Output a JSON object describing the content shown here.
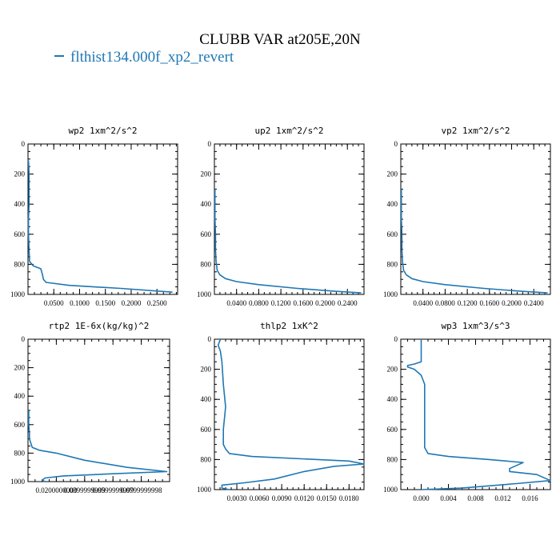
{
  "title": "CLUBB VAR at205E,20N",
  "legend": {
    "label": "flthist134.000f_xp2_revert",
    "color": "#1f77b4"
  },
  "chart_data": [
    {
      "type": "line",
      "title": "wp2  1xm^2/s^2",
      "xlim": [
        0,
        0.29
      ],
      "ylim": [
        1000,
        0
      ],
      "xticks": [
        0.05,
        0.1,
        0.15,
        0.2,
        0.25
      ],
      "xticklabels": [
        "0.0500",
        "0.1000",
        "0.1500",
        "0.2000",
        "0.2500"
      ],
      "yticks": [
        0,
        200,
        400,
        600,
        800,
        1000
      ],
      "yticklabels": [
        "0",
        "200",
        "400",
        "600",
        "800",
        "1000"
      ],
      "x": [
        0.001,
        0.002,
        0.002,
        0.002,
        0.001,
        0.001,
        0.002,
        0.003,
        0.01,
        0.025,
        0.028,
        0.03,
        0.035,
        0.08,
        0.18,
        0.28
      ],
      "y": [
        110,
        200,
        300,
        400,
        500,
        600,
        700,
        780,
        810,
        830,
        870,
        900,
        920,
        940,
        960,
        985
      ]
    },
    {
      "type": "line",
      "title": "up2  1xm^2/s^2",
      "xlim": [
        0,
        0.27
      ],
      "ylim": [
        1000,
        0
      ],
      "xticks": [
        0.04,
        0.08,
        0.12,
        0.16,
        0.2,
        0.24
      ],
      "xticklabels": [
        "0.0400",
        "0.0800",
        "0.1200",
        "0.1600",
        "0.2000",
        "0.2400"
      ],
      "yticks": [
        0,
        200,
        400,
        600,
        800,
        1000
      ],
      "yticklabels": [
        "0",
        "200",
        "400",
        "600",
        "800",
        "1000"
      ],
      "x": [
        0.001,
        0.001,
        0.001,
        0.002,
        0.002,
        0.003,
        0.005,
        0.01,
        0.02,
        0.04,
        0.08,
        0.15,
        0.22,
        0.265
      ],
      "y": [
        300,
        400,
        500,
        600,
        700,
        780,
        840,
        870,
        895,
        915,
        935,
        960,
        980,
        990
      ]
    },
    {
      "type": "line",
      "title": "vp2  1xm^2/s^2",
      "xlim": [
        0,
        0.27
      ],
      "ylim": [
        1000,
        0
      ],
      "xticks": [
        0.04,
        0.08,
        0.12,
        0.16,
        0.2,
        0.24
      ],
      "xticklabels": [
        "0.0400",
        "0.0800",
        "0.1200",
        "0.1600",
        "0.2000",
        "0.2400"
      ],
      "yticks": [
        0,
        200,
        400,
        600,
        800,
        1000
      ],
      "yticklabels": [
        "0",
        "200",
        "400",
        "600",
        "800",
        "1000"
      ],
      "x": [
        0.001,
        0.001,
        0.001,
        0.002,
        0.002,
        0.003,
        0.005,
        0.01,
        0.02,
        0.04,
        0.08,
        0.15,
        0.22,
        0.265
      ],
      "y": [
        300,
        400,
        500,
        600,
        700,
        780,
        840,
        870,
        895,
        915,
        935,
        960,
        980,
        990
      ]
    },
    {
      "type": "line",
      "title": "rtp2  1E-6x(kg/kg)^2",
      "xlim": [
        0,
        0.1
      ],
      "ylim": [
        1000,
        0
      ],
      "xticks": [
        0.02,
        0.04,
        0.06,
        0.08
      ],
      "xticklabels": [
        "0.0200000000",
        "0.0399999999",
        "0.0599999999",
        "0.0799999998"
      ],
      "yticks": [
        0,
        200,
        400,
        600,
        800,
        1000
      ],
      "yticklabels": [
        "0",
        "200",
        "400",
        "600",
        "800",
        "1000"
      ],
      "x": [
        0.0005,
        0.0005,
        0.001,
        0.001,
        0.002,
        0.003,
        0.008,
        0.02,
        0.04,
        0.07,
        0.098,
        0.06,
        0.025,
        0.012,
        0.01,
        0.012
      ],
      "y": [
        500,
        600,
        660,
        700,
        730,
        760,
        780,
        800,
        850,
        900,
        930,
        945,
        960,
        975,
        990,
        1000
      ]
    },
    {
      "type": "line",
      "title": "thlp2  1xK^2",
      "xlim": [
        0,
        0.02
      ],
      "ylim": [
        1000,
        0
      ],
      "xticks": [
        0.003,
        0.006,
        0.009,
        0.012,
        0.015,
        0.018
      ],
      "xticklabels": [
        "0.0030",
        "0.0060",
        "0.0090",
        "0.0120",
        "0.0150",
        "0.0180"
      ],
      "yticks": [
        0,
        200,
        400,
        600,
        800,
        1000
      ],
      "yticklabels": [
        "0",
        "200",
        "400",
        "600",
        "800",
        "1000"
      ],
      "x": [
        0.0008,
        0.0005,
        0.0008,
        0.001,
        0.0012,
        0.0015,
        0.0012,
        0.0012,
        0.0015,
        0.002,
        0.005,
        0.018,
        0.02,
        0.016,
        0.012,
        0.008,
        0.004,
        0.001,
        0.001,
        0.002
      ],
      "y": [
        0,
        40,
        80,
        150,
        300,
        450,
        600,
        700,
        730,
        760,
        780,
        810,
        830,
        845,
        880,
        930,
        955,
        970,
        990,
        1000
      ]
    },
    {
      "type": "line",
      "title": "wp3  1xm^3/s^3",
      "xlim": [
        -0.003,
        0.019
      ],
      "ylim": [
        1000,
        0
      ],
      "xticks": [
        0.0,
        0.004,
        0.008,
        0.012,
        0.016
      ],
      "xticklabels": [
        "0.000",
        "0.004",
        "0.008",
        "0.012",
        "0.016"
      ],
      "yticks": [
        0,
        200,
        400,
        600,
        800,
        1000
      ],
      "yticklabels": [
        "0",
        "200",
        "400",
        "600",
        "800",
        "1000"
      ],
      "x": [
        0.0,
        0.0,
        -0.001,
        -0.002,
        -0.002,
        -0.001,
        0.0,
        0.0005,
        0.0005,
        0.0005,
        0.0005,
        0.0005,
        0.001,
        0.004,
        0.01,
        0.015,
        0.013,
        0.013,
        0.017,
        0.019,
        0.014,
        0.006,
        0.0
      ],
      "y": [
        0,
        150,
        165,
        175,
        185,
        200,
        240,
        300,
        400,
        500,
        600,
        720,
        760,
        780,
        800,
        820,
        860,
        880,
        900,
        940,
        960,
        990,
        1000
      ]
    }
  ]
}
